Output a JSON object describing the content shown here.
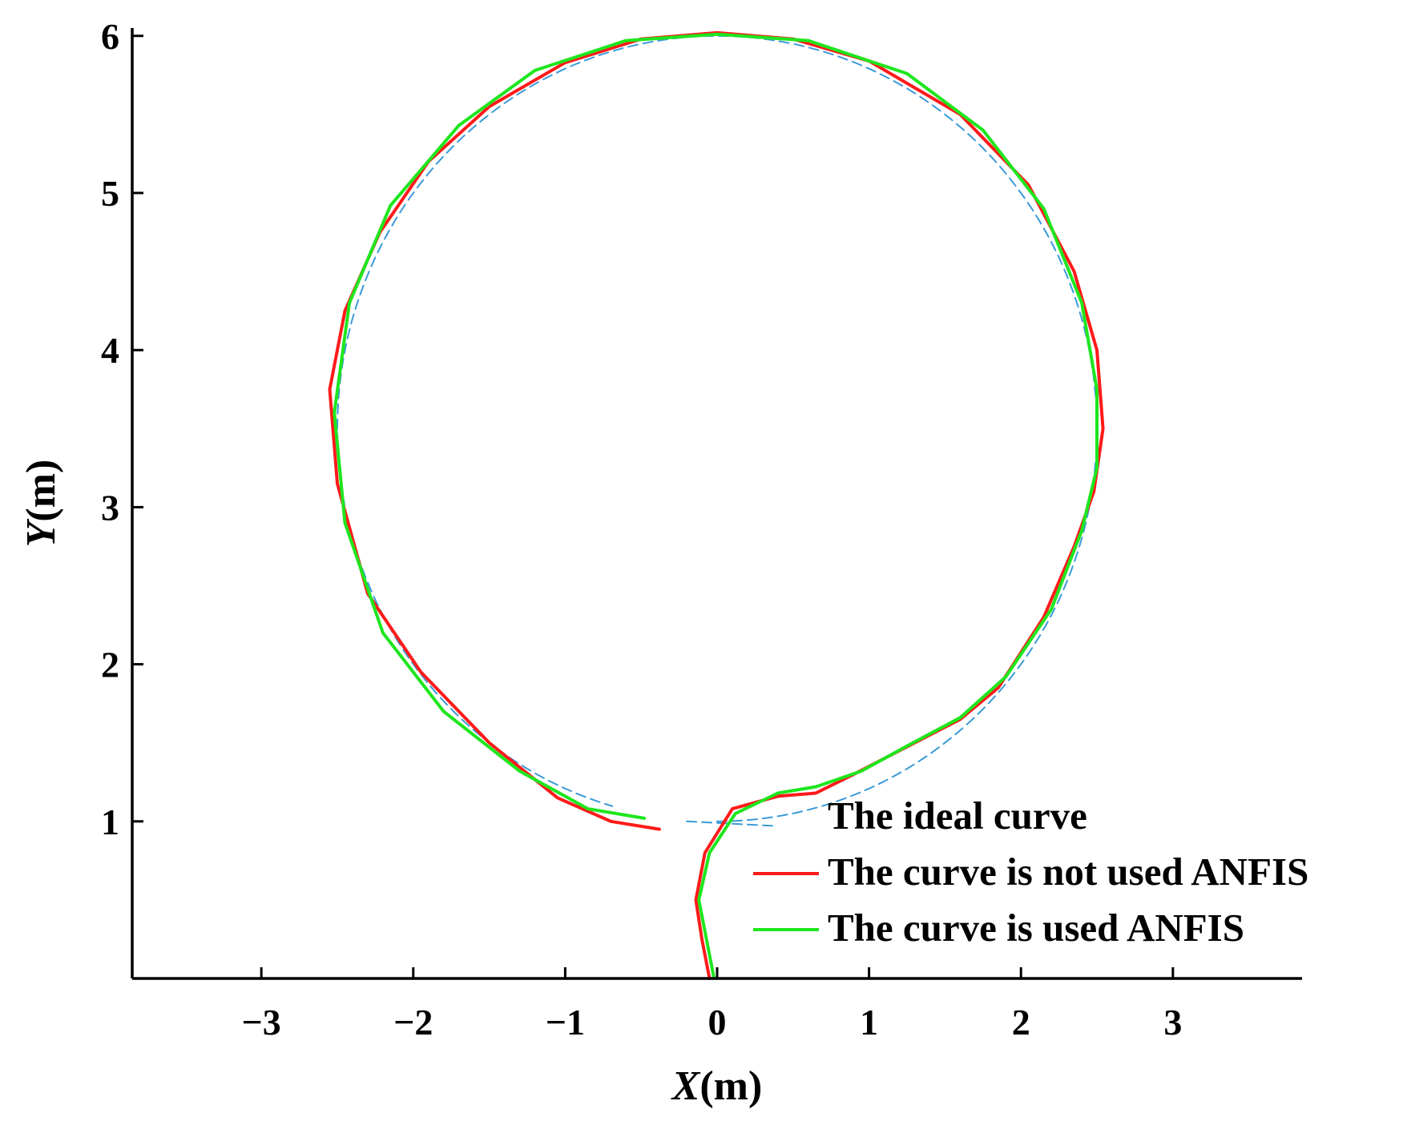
{
  "chart_data": {
    "type": "line",
    "title": "",
    "xlabel": {
      "var": "X",
      "unit": "(m)"
    },
    "ylabel": {
      "var": "Y",
      "unit": "(m)"
    },
    "xlim": [
      -3.85,
      3.85
    ],
    "ylim": [
      0,
      6.05
    ],
    "xticks": [
      -3,
      -2,
      -1,
      0,
      1,
      2,
      3
    ],
    "xtick_labels": [
      "−3",
      "−2",
      "−1",
      "0",
      "1",
      "2",
      "3"
    ],
    "yticks": [
      1,
      2,
      3,
      4,
      5,
      6
    ],
    "ytick_labels": [
      "1",
      "2",
      "3",
      "4",
      "5",
      "6"
    ],
    "grid": false,
    "legend": "bottom-right",
    "series": [
      {
        "name": "The ideal curve",
        "color": "#3a9ad9",
        "dash": "dashed",
        "circle": {
          "cx": 0,
          "cy": 3.5,
          "r": 2.5,
          "from_deg": -90,
          "to_deg": 255
        },
        "points": [
          [
            -0.2,
            1.0
          ],
          [
            0.4,
            0.97
          ]
        ]
      },
      {
        "name": "The curve is not used ANFIS",
        "color": "#ff1a1a",
        "dash": "solid",
        "points": [
          [
            -0.05,
            0.0
          ],
          [
            -0.1,
            0.25
          ],
          [
            -0.14,
            0.5
          ],
          [
            -0.08,
            0.8
          ],
          [
            0.1,
            1.08
          ],
          [
            0.4,
            1.16
          ],
          [
            0.65,
            1.18
          ],
          [
            0.9,
            1.3
          ],
          [
            1.2,
            1.45
          ],
          [
            1.6,
            1.65
          ],
          [
            1.85,
            1.85
          ],
          [
            2.15,
            2.3
          ],
          [
            2.35,
            2.75
          ],
          [
            2.48,
            3.1
          ],
          [
            2.54,
            3.5
          ],
          [
            2.5,
            4.0
          ],
          [
            2.35,
            4.5
          ],
          [
            2.05,
            5.05
          ],
          [
            1.6,
            5.5
          ],
          [
            1.0,
            5.84
          ],
          [
            0.5,
            5.98
          ],
          [
            0.0,
            6.02
          ],
          [
            -0.5,
            5.98
          ],
          [
            -1.0,
            5.83
          ],
          [
            -1.5,
            5.55
          ],
          [
            -1.9,
            5.2
          ],
          [
            -2.22,
            4.75
          ],
          [
            -2.45,
            4.25
          ],
          [
            -2.55,
            3.75
          ],
          [
            -2.5,
            3.15
          ],
          [
            -2.3,
            2.45
          ],
          [
            -1.95,
            1.95
          ],
          [
            -1.5,
            1.5
          ],
          [
            -1.05,
            1.15
          ],
          [
            -0.7,
            1.0
          ],
          [
            -0.38,
            0.95
          ]
        ]
      },
      {
        "name": "The curve is used ANFIS",
        "color": "#1ee61e",
        "dash": "solid",
        "points": [
          [
            -0.02,
            0.0
          ],
          [
            -0.07,
            0.25
          ],
          [
            -0.12,
            0.5
          ],
          [
            -0.05,
            0.8
          ],
          [
            0.12,
            1.05
          ],
          [
            0.4,
            1.18
          ],
          [
            0.65,
            1.22
          ],
          [
            0.95,
            1.32
          ],
          [
            1.25,
            1.48
          ],
          [
            1.6,
            1.66
          ],
          [
            1.9,
            1.92
          ],
          [
            2.2,
            2.35
          ],
          [
            2.4,
            2.85
          ],
          [
            2.5,
            3.25
          ],
          [
            2.5,
            3.75
          ],
          [
            2.4,
            4.3
          ],
          [
            2.15,
            4.9
          ],
          [
            1.75,
            5.4
          ],
          [
            1.25,
            5.76
          ],
          [
            0.6,
            5.97
          ],
          [
            0.0,
            6.01
          ],
          [
            -0.6,
            5.97
          ],
          [
            -1.2,
            5.78
          ],
          [
            -1.7,
            5.43
          ],
          [
            -2.15,
            4.92
          ],
          [
            -2.42,
            4.3
          ],
          [
            -2.52,
            3.6
          ],
          [
            -2.45,
            2.9
          ],
          [
            -2.2,
            2.2
          ],
          [
            -1.8,
            1.7
          ],
          [
            -1.3,
            1.32
          ],
          [
            -0.85,
            1.08
          ],
          [
            -0.48,
            1.02
          ]
        ]
      }
    ]
  }
}
